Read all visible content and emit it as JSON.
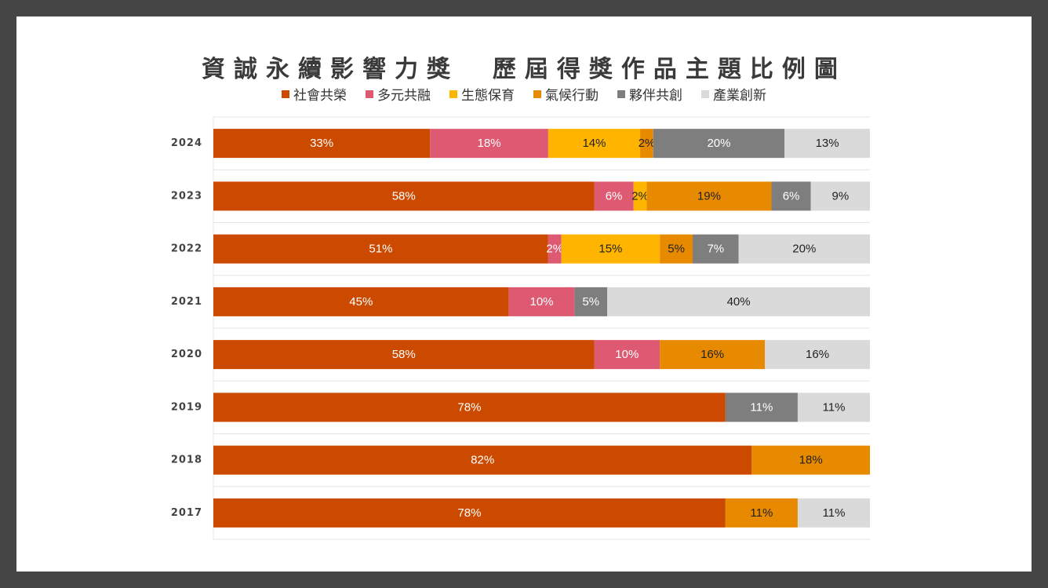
{
  "chart_data": {
    "type": "bar",
    "orientation": "horizontal",
    "stacked": true,
    "normalized": "100%",
    "title": "資誠永續影響力獎  歷屆得獎作品主題比例圖",
    "legend_position": "top",
    "categories": [
      "2024",
      "2023",
      "2022",
      "2021",
      "2020",
      "2019",
      "2018",
      "2017"
    ],
    "series": [
      {
        "name": "社會共榮",
        "color": "#CC4A00",
        "text_color": "#ffffff",
        "values": [
          33,
          58,
          51,
          45,
          58,
          78,
          82,
          78
        ]
      },
      {
        "name": "多元共融",
        "color": "#DD5A72",
        "text_color": "#ffffff",
        "values": [
          18,
          6,
          2,
          10,
          10,
          0,
          0,
          0
        ]
      },
      {
        "name": "生態保育",
        "color": "#FFB500",
        "text_color": "#222222",
        "values": [
          14,
          2,
          15,
          0,
          0,
          0,
          0,
          0
        ]
      },
      {
        "name": "氣候行動",
        "color": "#E88A00",
        "text_color": "#222222",
        "values": [
          2,
          19,
          5,
          0,
          16,
          0,
          18,
          11
        ]
      },
      {
        "name": "夥伴共創",
        "color": "#7E7E7E",
        "text_color": "#ffffff",
        "values": [
          20,
          6,
          7,
          5,
          0,
          11,
          0,
          0
        ]
      },
      {
        "name": "產業創新",
        "color": "#DADADA",
        "text_color": "#222222",
        "values": [
          13,
          9,
          20,
          40,
          16,
          11,
          0,
          11
        ]
      }
    ],
    "data_labels_suffix": "%",
    "grid": true
  }
}
